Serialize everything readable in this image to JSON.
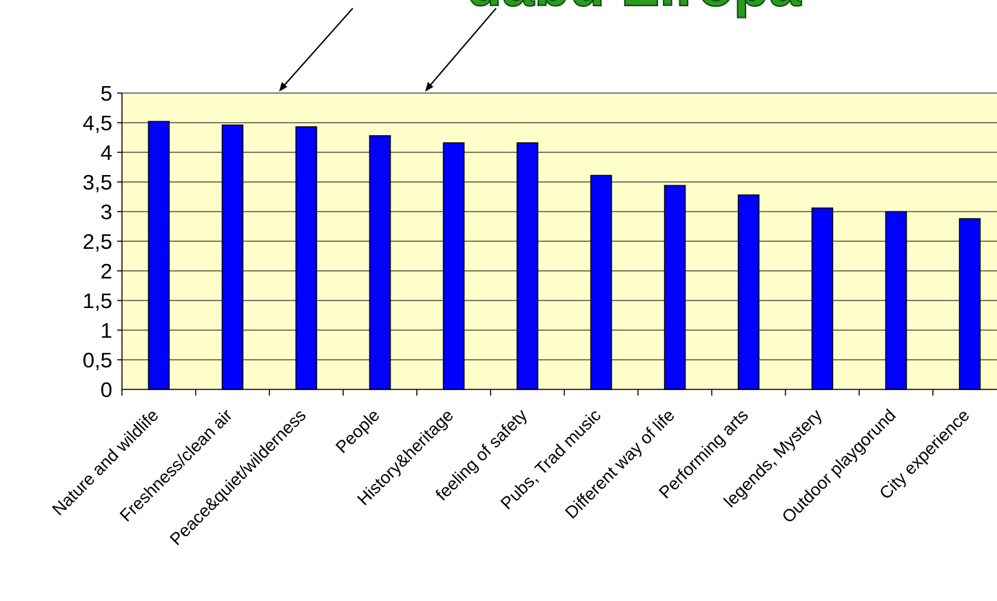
{
  "header": {
    "title": "dabū Eiropā"
  },
  "colors": {
    "plot_background": "#ffffcc",
    "bar_fill": "#0000ff",
    "bar_stroke": "#000000",
    "title_fill": "#2b9a1f"
  },
  "chart_data": {
    "type": "bar",
    "title": "dabū Eiropā",
    "xlabel": "",
    "ylabel": "",
    "ylim": [
      0,
      5
    ],
    "grid": true,
    "yticks": [
      "0",
      "0,5",
      "1",
      "1,5",
      "2",
      "2,5",
      "3",
      "3,5",
      "4",
      "4,5",
      "5"
    ],
    "categories": [
      "Nature and wildlife",
      "Freshness/clean air",
      "Peace&quiet/wilderness",
      "People",
      "History&heritage",
      "feeling of safety",
      "Pubs, Trad music",
      "Different way of life",
      "Performing arts",
      "legends, Mystery",
      "Outdoor playgorund",
      "City experience"
    ],
    "values": [
      4.52,
      4.46,
      4.43,
      4.28,
      4.16,
      4.16,
      3.61,
      3.44,
      3.28,
      3.06,
      3.0,
      2.88
    ]
  }
}
